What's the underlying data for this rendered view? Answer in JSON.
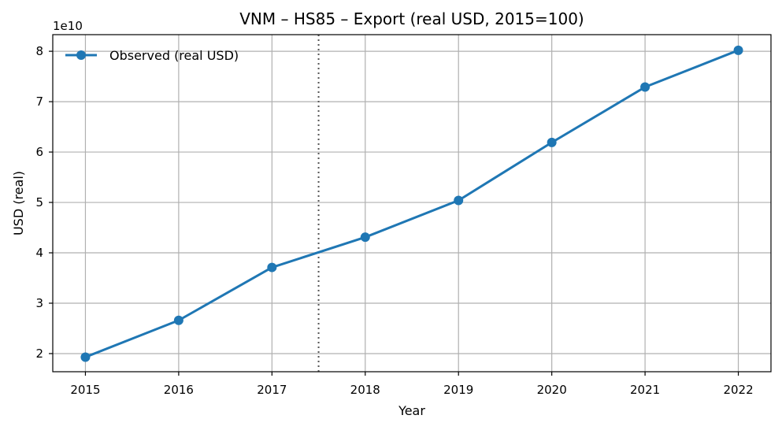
{
  "chart_data": {
    "type": "line",
    "title": "VNM – HS85 – Export (real USD, 2015=100)",
    "xlabel": "Year",
    "ylabel": "USD (real)",
    "y_offset_label": "1e10",
    "x": [
      2015,
      2016,
      2017,
      2018,
      2019,
      2020,
      2021,
      2022
    ],
    "series": [
      {
        "name": "Observed (real USD)",
        "values": [
          19300000000,
          26600000000,
          37100000000,
          43100000000,
          50400000000,
          61900000000,
          72900000000,
          80200000000
        ],
        "color": "#1f77b4",
        "marker": "circle"
      }
    ],
    "xlim": [
      2014.65,
      2022.35
    ],
    "ylim": [
      16400000000,
      83300000000
    ],
    "x_ticks": [
      2015,
      2016,
      2017,
      2018,
      2019,
      2020,
      2021,
      2022
    ],
    "y_ticks": [
      20000000000,
      30000000000,
      40000000000,
      50000000000,
      60000000000,
      70000000000,
      80000000000
    ],
    "y_tick_labels": [
      "2",
      "3",
      "4",
      "5",
      "6",
      "7",
      "8"
    ],
    "vline": {
      "x": 2017.5,
      "style": "dotted",
      "color": "#555555"
    },
    "grid": true,
    "legend_position": "top-left"
  }
}
